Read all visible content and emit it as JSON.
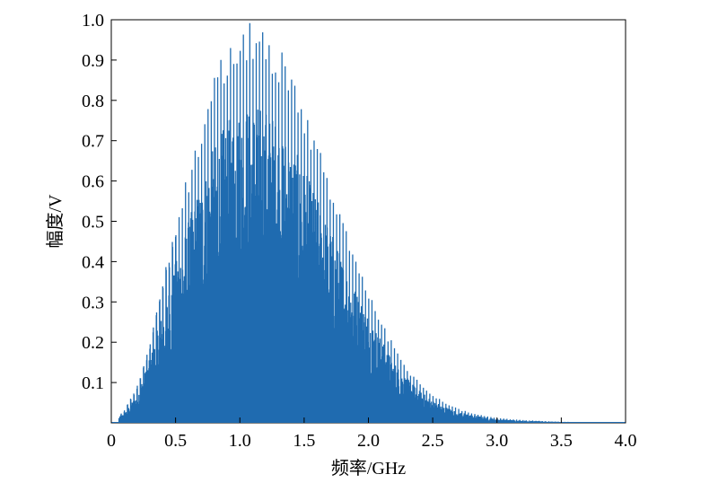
{
  "chart_data": {
    "type": "line",
    "xlabel": "频率/GHz",
    "ylabel": "幅度/V",
    "xlim": [
      0,
      4.0
    ],
    "ylim": [
      0,
      1.0
    ],
    "x_ticks": [
      "0",
      "0.5",
      "1.0",
      "1.5",
      "2.0",
      "2.5",
      "3.0",
      "3.5",
      "4.0"
    ],
    "y_ticks": [
      "0.1",
      "0.2",
      "0.3",
      "0.4",
      "0.5",
      "0.6",
      "0.7",
      "0.8",
      "0.9",
      "1.0"
    ],
    "grid": false,
    "color": "#1f6bb0",
    "series": [
      {
        "description_free": true,
        "envelope_x": [
          0.0,
          0.1,
          0.2,
          0.3,
          0.4,
          0.5,
          0.6,
          0.7,
          0.8,
          0.9,
          1.0,
          1.1,
          1.2,
          1.3,
          1.4,
          1.5,
          1.6,
          1.7,
          1.8,
          1.9,
          2.0,
          2.1,
          2.2,
          2.3,
          2.4,
          2.5,
          2.6,
          2.7,
          2.8,
          2.9,
          3.0,
          3.2,
          3.4,
          3.6,
          3.8,
          4.0
        ],
        "envelope_y": [
          0.0,
          0.03,
          0.09,
          0.2,
          0.35,
          0.5,
          0.63,
          0.75,
          0.86,
          0.94,
          0.98,
          1.0,
          0.98,
          0.94,
          0.87,
          0.79,
          0.7,
          0.61,
          0.51,
          0.42,
          0.34,
          0.26,
          0.19,
          0.14,
          0.1,
          0.07,
          0.05,
          0.035,
          0.025,
          0.018,
          0.012,
          0.007,
          0.004,
          0.002,
          0.001,
          0.0
        ]
      }
    ]
  }
}
